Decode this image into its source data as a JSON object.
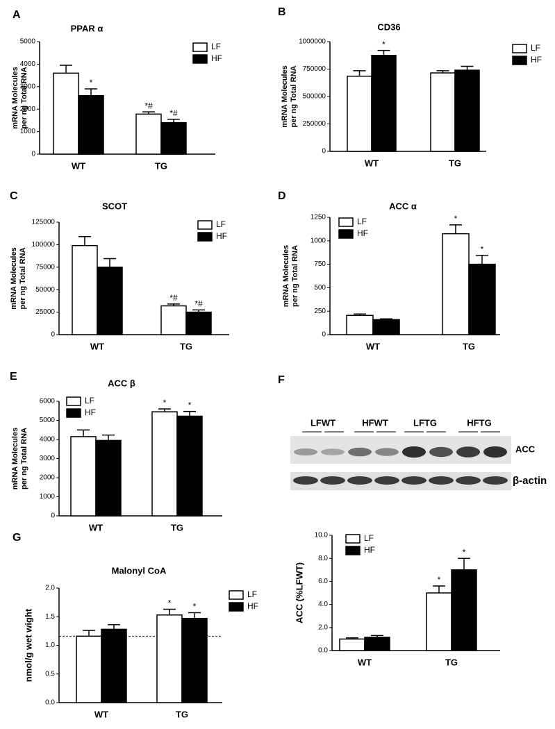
{
  "chart_data": [
    {
      "type": "bar",
      "panel": "A",
      "title": "PPAR α",
      "y_label": [
        "mRNA Molecules",
        "per ng Total RNA"
      ],
      "categories": [
        "WT",
        "TG"
      ],
      "ylim": [
        0,
        5000
      ],
      "yticks": [
        0,
        1000,
        2000,
        3000,
        4000,
        5000
      ],
      "series": [
        {
          "name": "LF",
          "color": "#ffffff",
          "values": [
            3600,
            1780
          ],
          "errors": [
            350,
            100
          ],
          "annotations": [
            null,
            "*#"
          ]
        },
        {
          "name": "HF",
          "color": "#000000",
          "values": [
            2600,
            1400
          ],
          "errors": [
            300,
            150
          ],
          "annotations": [
            "*",
            "*#"
          ]
        }
      ],
      "legend": "top-right"
    },
    {
      "type": "bar",
      "panel": "B",
      "title": "CD36",
      "y_label": [
        "mRNA Molecules",
        "per ng Total RNA"
      ],
      "categories": [
        "WT",
        "TG"
      ],
      "ylim": [
        0,
        1000000
      ],
      "yticks": [
        0,
        250000,
        500000,
        750000,
        1000000
      ],
      "series": [
        {
          "name": "LF",
          "color": "#ffffff",
          "values": [
            685000,
            715000
          ],
          "errors": [
            50000,
            20000
          ],
          "annotations": [
            null,
            null
          ]
        },
        {
          "name": "HF",
          "color": "#000000",
          "values": [
            875000,
            740000
          ],
          "errors": [
            45000,
            35000
          ],
          "annotations": [
            "*",
            null
          ]
        }
      ],
      "legend": "top-right"
    },
    {
      "type": "bar",
      "panel": "C",
      "title": "SCOT",
      "y_label": [
        "mRNA Molecules",
        "per ng Total RNA"
      ],
      "categories": [
        "WT",
        "TG"
      ],
      "ylim": [
        0,
        125000
      ],
      "yticks": [
        0,
        25000,
        50000,
        75000,
        100000,
        125000
      ],
      "series": [
        {
          "name": "LF",
          "color": "#ffffff",
          "values": [
            99000,
            32000
          ],
          "errors": [
            10000,
            2000
          ],
          "annotations": [
            null,
            "*#"
          ]
        },
        {
          "name": "HF",
          "color": "#000000",
          "values": [
            75000,
            25000
          ],
          "errors": [
            9500,
            2500
          ],
          "annotations": [
            null,
            "*#"
          ]
        }
      ],
      "legend": "top-right"
    },
    {
      "type": "bar",
      "panel": "D",
      "title": "ACC α",
      "y_label": [
        "mRNA Molecules",
        "per ng Total RNA"
      ],
      "categories": [
        "WT",
        "TG"
      ],
      "ylim": [
        0,
        1250
      ],
      "yticks": [
        0,
        250,
        500,
        750,
        1000,
        1250
      ],
      "series": [
        {
          "name": "LF",
          "color": "#ffffff",
          "values": [
            205,
            1075
          ],
          "errors": [
            15,
            95
          ],
          "annotations": [
            null,
            "*"
          ]
        },
        {
          "name": "HF",
          "color": "#000000",
          "values": [
            160,
            750
          ],
          "errors": [
            8,
            95
          ],
          "annotations": [
            null,
            "*"
          ]
        }
      ],
      "legend": "top-left"
    },
    {
      "type": "bar",
      "panel": "E",
      "title": "ACC β",
      "y_label": [
        "mRNA Molecules",
        "per ng Total RNA"
      ],
      "categories": [
        "WT",
        "TG"
      ],
      "ylim": [
        0,
        6000
      ],
      "yticks": [
        0,
        1000,
        2000,
        3000,
        4000,
        5000,
        6000
      ],
      "series": [
        {
          "name": "LF",
          "color": "#ffffff",
          "values": [
            4150,
            5450
          ],
          "errors": [
            350,
            150
          ],
          "annotations": [
            null,
            "*"
          ]
        },
        {
          "name": "HF",
          "color": "#000000",
          "values": [
            3950,
            5220
          ],
          "errors": [
            280,
            250
          ],
          "annotations": [
            null,
            "*"
          ]
        }
      ],
      "legend": "top-left"
    },
    {
      "type": "bar",
      "y_label": "ACC (%LFWT)",
      "categories": [
        "WT",
        "TG"
      ],
      "ylim": [
        0,
        10
      ],
      "yticks": [
        {
          "value": 0,
          "label": "0.0"
        },
        {
          "value": 2,
          "label": "2.0"
        },
        {
          "value": 4,
          "label": "4.0"
        },
        {
          "value": 6,
          "label": "6.0"
        },
        {
          "value": 8,
          "label": "8.0"
        },
        {
          "value": 10,
          "label": "10.0"
        }
      ],
      "series": [
        {
          "name": "LF",
          "color": "#ffffff",
          "values": [
            1.0,
            5.0
          ],
          "errors": [
            0.1,
            0.6
          ],
          "annotations": [
            null,
            "*"
          ]
        },
        {
          "name": "HF",
          "color": "#000000",
          "values": [
            1.15,
            7.0
          ],
          "errors": [
            0.15,
            1.0
          ],
          "annotations": [
            null,
            "*"
          ]
        }
      ],
      "legend": "top-left"
    },
    {
      "type": "bar",
      "panel": "G",
      "title": "Malonyl CoA",
      "y_label": "nmol/g wet wight",
      "categories": [
        "WT",
        "TG"
      ],
      "ylim": [
        0,
        2
      ],
      "yticks": [
        {
          "value": 0,
          "label": "0.0"
        },
        {
          "value": 0.5,
          "label": "0.5"
        },
        {
          "value": 1,
          "label": "1.0"
        },
        {
          "value": 1.5,
          "label": "1.5"
        },
        {
          "value": 2,
          "label": "2.0"
        }
      ],
      "series": [
        {
          "name": "LF",
          "color": "#ffffff",
          "values": [
            1.16,
            1.53
          ],
          "errors": [
            0.1,
            0.1
          ],
          "annotations": [
            null,
            "*"
          ]
        },
        {
          "name": "HF",
          "color": "#000000",
          "values": [
            1.28,
            1.47
          ],
          "errors": [
            0.08,
            0.1
          ],
          "annotations": [
            null,
            "*"
          ]
        }
      ],
      "reference_line": 1.16,
      "legend": "top-right"
    }
  ],
  "blot": {
    "panel": "F",
    "lanes": [
      "LFWT",
      "HFWT",
      "LFTG",
      "HFTG"
    ],
    "rows": [
      "ACC",
      "β-actin"
    ]
  }
}
